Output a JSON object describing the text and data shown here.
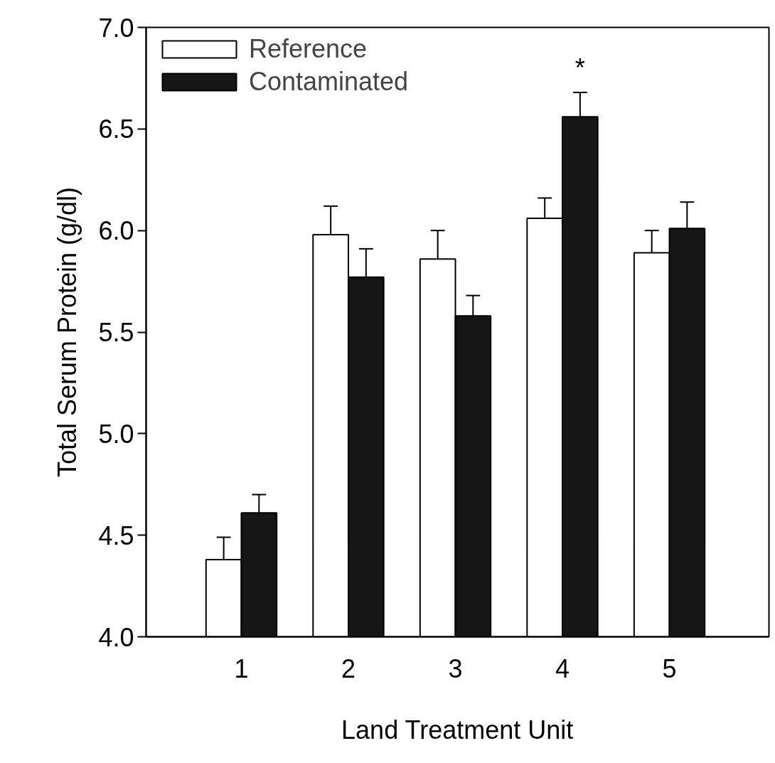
{
  "chart_data": {
    "type": "bar",
    "xlabel": "Land Treatment Unit",
    "ylabel": "Total Serum Protein (g/dl)",
    "categories": [
      "1",
      "2",
      "3",
      "4",
      "5"
    ],
    "series": [
      {
        "name": "Reference",
        "color": "#ffffff",
        "values": [
          4.38,
          5.98,
          5.86,
          6.06,
          5.89
        ],
        "errors": [
          [
            4.38,
            4.49
          ],
          [
            5.98,
            6.12
          ],
          [
            5.86,
            6.0
          ],
          [
            6.06,
            6.16
          ],
          [
            5.89,
            6.0
          ]
        ]
      },
      {
        "name": "Contaminated",
        "color": "#161616",
        "values": [
          4.61,
          5.77,
          5.58,
          6.56,
          6.01
        ],
        "errors": [
          [
            4.61,
            4.7
          ],
          [
            5.77,
            5.91
          ],
          [
            5.58,
            5.68
          ],
          [
            6.56,
            6.68
          ],
          [
            6.01,
            6.14
          ]
        ]
      }
    ],
    "annotations": [
      "*"
    ],
    "ylim": [
      4.0,
      7.0
    ],
    "yticks": [
      {
        "value": 4.0,
        "label": "4.0"
      },
      {
        "value": 4.5,
        "label": "4.5"
      },
      {
        "value": 5.0,
        "label": "5.0"
      },
      {
        "value": 5.5,
        "label": "5.5"
      },
      {
        "value": 6.0,
        "label": "6.0"
      },
      {
        "value": 6.5,
        "label": "6.5"
      },
      {
        "value": 7.0,
        "label": "7.0"
      }
    ],
    "grid": false,
    "legend": "top left"
  }
}
